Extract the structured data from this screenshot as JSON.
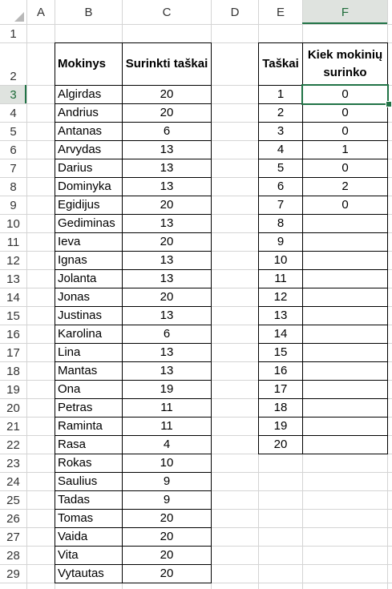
{
  "columns": [
    "A",
    "B",
    "C",
    "D",
    "E",
    "F"
  ],
  "selected_cell": "F3",
  "rows": [
    "1",
    "2",
    "3",
    "4",
    "5",
    "6",
    "7",
    "8",
    "9",
    "10",
    "11",
    "12",
    "13",
    "14",
    "15",
    "16",
    "17",
    "18",
    "19",
    "20",
    "21",
    "22",
    "23",
    "24",
    "25",
    "26",
    "27",
    "28",
    "29"
  ],
  "table1": {
    "header_name": "Mokinys",
    "header_score": "Surinkti taškai",
    "students": [
      {
        "name": "Algirdas",
        "score": "20"
      },
      {
        "name": "Andrius",
        "score": "20"
      },
      {
        "name": "Antanas",
        "score": "6"
      },
      {
        "name": "Arvydas",
        "score": "13"
      },
      {
        "name": "Darius",
        "score": "13"
      },
      {
        "name": "Dominyka",
        "score": "13"
      },
      {
        "name": "Egidijus",
        "score": "20"
      },
      {
        "name": "Gediminas",
        "score": "13"
      },
      {
        "name": "Ieva",
        "score": "20"
      },
      {
        "name": "Ignas",
        "score": "13"
      },
      {
        "name": "Jolanta",
        "score": "13"
      },
      {
        "name": "Jonas",
        "score": "20"
      },
      {
        "name": "Justinas",
        "score": "13"
      },
      {
        "name": "Karolina",
        "score": "6"
      },
      {
        "name": "Lina",
        "score": "13"
      },
      {
        "name": "Mantas",
        "score": "13"
      },
      {
        "name": "Ona",
        "score": "19"
      },
      {
        "name": "Petras",
        "score": "11"
      },
      {
        "name": "Raminta",
        "score": "11"
      },
      {
        "name": "Rasa",
        "score": "4"
      },
      {
        "name": "Rokas",
        "score": "10"
      },
      {
        "name": "Saulius",
        "score": "9"
      },
      {
        "name": "Tadas",
        "score": "9"
      },
      {
        "name": "Tomas",
        "score": "20"
      },
      {
        "name": "Vaida",
        "score": "20"
      },
      {
        "name": "Vita",
        "score": "20"
      },
      {
        "name": "Vytautas",
        "score": "20"
      }
    ]
  },
  "table2": {
    "header_points": "Taškai",
    "header_count_line1": "Kiek mokinių",
    "header_count_line2": "surinko",
    "rows": [
      {
        "points": "1",
        "count": "0"
      },
      {
        "points": "2",
        "count": "0"
      },
      {
        "points": "3",
        "count": "0"
      },
      {
        "points": "4",
        "count": "1"
      },
      {
        "points": "5",
        "count": "0"
      },
      {
        "points": "6",
        "count": "2"
      },
      {
        "points": "7",
        "count": "0"
      },
      {
        "points": "8",
        "count": ""
      },
      {
        "points": "9",
        "count": ""
      },
      {
        "points": "10",
        "count": ""
      },
      {
        "points": "11",
        "count": ""
      },
      {
        "points": "12",
        "count": ""
      },
      {
        "points": "13",
        "count": ""
      },
      {
        "points": "14",
        "count": ""
      },
      {
        "points": "15",
        "count": ""
      },
      {
        "points": "16",
        "count": ""
      },
      {
        "points": "17",
        "count": ""
      },
      {
        "points": "18",
        "count": ""
      },
      {
        "points": "19",
        "count": ""
      },
      {
        "points": "20",
        "count": ""
      }
    ]
  },
  "colors": {
    "selection": "#217346",
    "header_highlight": "#dfe3df",
    "gridline": "#d4d4d4"
  }
}
